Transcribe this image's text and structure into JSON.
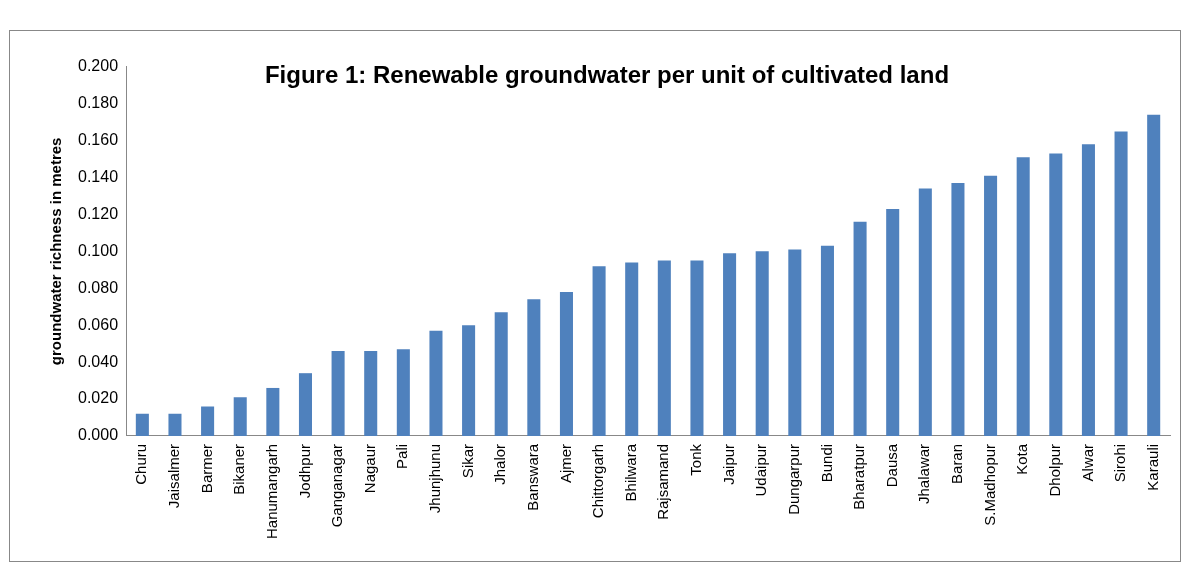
{
  "chart_data": {
    "type": "bar",
    "title": "Figure 1: Renewable groundwater per unit of cultivated land",
    "ylabel": "groundwater richness in metres",
    "categories": [
      "Churu",
      "Jaisalmer",
      "Barmer",
      "Bikaner",
      "Hanumangarh",
      "Jodhpur",
      "Ganganagar",
      "Nagaur",
      "Pali",
      "Jhunjhunu",
      "Sikar",
      "Jhalor",
      "Banswara",
      "Ajmer",
      "Chittorgarh",
      "Bhilwara",
      "Rajsamand",
      "Tonk",
      "Jaipur",
      "Udaipur",
      "Dungarpur",
      "Bundi",
      "Bharatpur",
      "Dausa",
      "Jhalawar",
      "Baran",
      "S.Madhopur",
      "Kota",
      "Dholpur",
      "Alwar",
      "Sirohi",
      "Karauli"
    ],
    "values": [
      0.012,
      0.012,
      0.016,
      0.021,
      0.026,
      0.034,
      0.046,
      0.046,
      0.047,
      0.057,
      0.06,
      0.067,
      0.074,
      0.078,
      0.092,
      0.094,
      0.095,
      0.095,
      0.099,
      0.1,
      0.101,
      0.103,
      0.116,
      0.123,
      0.134,
      0.137,
      0.141,
      0.151,
      0.153,
      0.158,
      0.165,
      0.174
    ],
    "color": "#4f81bd",
    "ylim": [
      0,
      0.2
    ],
    "yticks": [
      {
        "value": 0,
        "label": "0.000"
      },
      {
        "value": 0.02,
        "label": "0.020"
      },
      {
        "value": 0.04,
        "label": "0.040"
      },
      {
        "value": 0.06,
        "label": "0.060"
      },
      {
        "value": 0.08,
        "label": "0.080"
      },
      {
        "value": 0.1,
        "label": "0.100"
      },
      {
        "value": 0.12,
        "label": "0.120"
      },
      {
        "value": 0.14,
        "label": "0.140"
      },
      {
        "value": 0.16,
        "label": "0.160"
      },
      {
        "value": 0.18,
        "label": "0.180"
      },
      {
        "value": 0.2,
        "label": "0.200"
      }
    ],
    "grid": false,
    "legend": false
  }
}
